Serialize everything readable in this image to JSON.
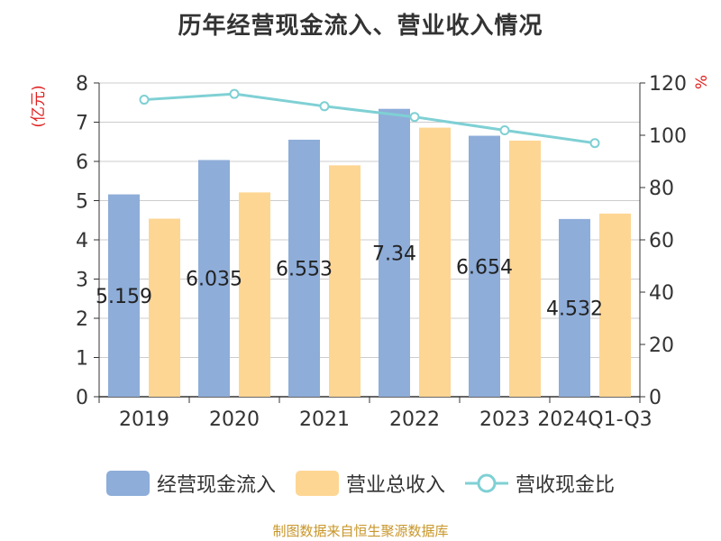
{
  "chart_data": {
    "type": "bar",
    "title": "历年经营现金流入、营业收入情况",
    "categories": [
      "2019",
      "2020",
      "2021",
      "2022",
      "2023",
      "2024Q1-Q3"
    ],
    "series": [
      {
        "name": "经营现金流入",
        "type": "bar",
        "axis": "left",
        "color": "#8eadd9",
        "values": [
          5.159,
          6.035,
          6.553,
          7.34,
          6.654,
          4.532
        ],
        "labels": [
          "5.159",
          "6.035",
          "6.553",
          "7.34",
          "6.654",
          "4.532"
        ]
      },
      {
        "name": "营业总收入",
        "type": "bar",
        "axis": "left",
        "color": "#fdd694",
        "values": [
          4.54,
          5.21,
          5.9,
          6.86,
          6.53,
          4.67
        ]
      },
      {
        "name": "营收现金比",
        "type": "line",
        "axis": "right",
        "color": "#7fd0d4",
        "values": [
          113.6,
          115.8,
          111.1,
          107.0,
          101.9,
          97.0
        ]
      }
    ],
    "yaxis_left": {
      "label": "(亿元)",
      "label_color": "#e02020",
      "range": [
        0,
        8
      ],
      "ticks": [
        "0",
        "1",
        "2",
        "3",
        "4",
        "5",
        "6",
        "7",
        "8"
      ]
    },
    "yaxis_right": {
      "label": "%",
      "label_color": "#e02020",
      "range": [
        0,
        120
      ],
      "ticks": [
        "0",
        "20",
        "40",
        "60",
        "80",
        "100",
        "120"
      ]
    },
    "grid": true,
    "legend_position": "bottom"
  },
  "source_note": "制图数据来自恒生聚源数据库"
}
